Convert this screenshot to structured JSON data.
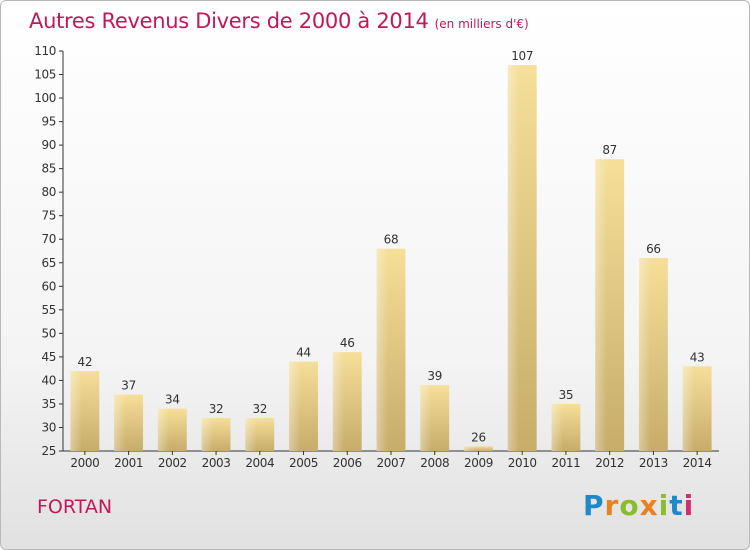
{
  "title": "Autres Revenus Divers de 2000 à 2014",
  "subtitle": "(en milliers d'€)",
  "place": "FORTAN",
  "logo": {
    "letters": [
      "P",
      "r",
      "o",
      "x",
      "i",
      "t",
      "i"
    ],
    "colors": [
      "#1e88c9",
      "#e8821e",
      "#8bbd2a",
      "#e8821e",
      "#8bbd2a",
      "#1e88c9",
      "#d32f6f"
    ]
  },
  "chart_data": {
    "type": "bar",
    "categories": [
      "2000",
      "2001",
      "2002",
      "2003",
      "2004",
      "2005",
      "2006",
      "2007",
      "2008",
      "2009",
      "2010",
      "2011",
      "2012",
      "2013",
      "2014"
    ],
    "values": [
      42,
      37,
      34,
      32,
      32,
      44,
      46,
      68,
      39,
      26,
      107,
      35,
      87,
      66,
      43
    ],
    "ylim": [
      25,
      110
    ],
    "yticks": [
      25,
      30,
      35,
      40,
      45,
      50,
      55,
      60,
      65,
      70,
      75,
      80,
      85,
      90,
      95,
      100,
      105,
      110
    ],
    "grid": false,
    "bar_color": "#e6c878"
  }
}
